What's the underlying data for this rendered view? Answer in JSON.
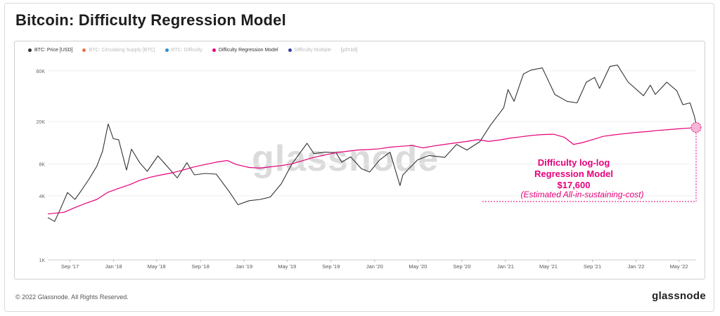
{
  "title": "Bitcoin: Difficulty Regression Model",
  "footer": {
    "copyright": "© 2022 Glassnode. All Rights Reserved.",
    "brand": "glassnode"
  },
  "watermark": "glassnode",
  "legend": {
    "items": [
      {
        "label": "BTC: Price [USD]",
        "color": "#333333",
        "active": true
      },
      {
        "label": "BTC: Circulating Supply [BTC]",
        "color": "#e8704a",
        "active": false
      },
      {
        "label": "BTC: Difficulty",
        "color": "#2b8fd6",
        "active": false
      },
      {
        "label": "Difficulty Regression Model",
        "color": "#e6007a",
        "active": true
      },
      {
        "label": "Difficulty Multiple",
        "color": "#3d3da8",
        "active": false
      }
    ],
    "scale_label": "[y2=10]"
  },
  "annotation": {
    "line1": "Difficulty log-log",
    "line2": "Regression Model",
    "line3": "$17,600",
    "line4": "(Estimated All-in-sustaining-cost)"
  },
  "chart_data": {
    "type": "line",
    "y_scale": "log",
    "y_ticks": [
      {
        "value": 1000,
        "label": "1K"
      },
      {
        "value": 4000,
        "label": "4K"
      },
      {
        "value": 8000,
        "label": "8K"
      },
      {
        "value": 20000,
        "label": "20K"
      },
      {
        "value": 60000,
        "label": "60K"
      }
    ],
    "x_ticks": [
      {
        "date": "2017-09-01",
        "label": "Sep '17"
      },
      {
        "date": "2018-01-01",
        "label": "Jan '18"
      },
      {
        "date": "2018-05-01",
        "label": "May '18"
      },
      {
        "date": "2018-09-01",
        "label": "Sep '18"
      },
      {
        "date": "2019-01-01",
        "label": "Jan '19"
      },
      {
        "date": "2019-05-01",
        "label": "May '19"
      },
      {
        "date": "2019-09-01",
        "label": "Sep '19"
      },
      {
        "date": "2020-01-01",
        "label": "Jan '20"
      },
      {
        "date": "2020-05-01",
        "label": "May '20"
      },
      {
        "date": "2020-09-01",
        "label": "Sep '20"
      },
      {
        "date": "2021-01-01",
        "label": "Jan '21"
      },
      {
        "date": "2021-05-01",
        "label": "May '21"
      },
      {
        "date": "2021-09-01",
        "label": "Sep '21"
      },
      {
        "date": "2022-01-01",
        "label": "Jan '22"
      },
      {
        "date": "2022-05-01",
        "label": "May '22"
      }
    ],
    "xlim": [
      "2017-07-01",
      "2022-06-18"
    ],
    "ylim": [
      1000,
      80000
    ],
    "series": [
      {
        "name": "BTC: Price [USD]",
        "color": "#333333",
        "points": [
          [
            "2017-07-01",
            2500
          ],
          [
            "2017-07-20",
            2300
          ],
          [
            "2017-08-05",
            3000
          ],
          [
            "2017-08-25",
            4300
          ],
          [
            "2017-09-15",
            3700
          ],
          [
            "2017-10-01",
            4400
          ],
          [
            "2017-10-25",
            5800
          ],
          [
            "2017-11-15",
            7600
          ],
          [
            "2017-12-01",
            10500
          ],
          [
            "2017-12-17",
            19000
          ],
          [
            "2017-12-31",
            13800
          ],
          [
            "2018-01-15",
            13500
          ],
          [
            "2018-02-06",
            7000
          ],
          [
            "2018-02-20",
            11000
          ],
          [
            "2018-03-15",
            8200
          ],
          [
            "2018-04-05",
            6800
          ],
          [
            "2018-05-05",
            9500
          ],
          [
            "2018-06-01",
            7500
          ],
          [
            "2018-06-28",
            5900
          ],
          [
            "2018-07-25",
            8200
          ],
          [
            "2018-08-15",
            6300
          ],
          [
            "2018-09-15",
            6500
          ],
          [
            "2018-10-15",
            6400
          ],
          [
            "2018-11-20",
            4400
          ],
          [
            "2018-12-15",
            3300
          ],
          [
            "2019-01-15",
            3600
          ],
          [
            "2019-02-15",
            3700
          ],
          [
            "2019-03-15",
            3900
          ],
          [
            "2019-04-15",
            5200
          ],
          [
            "2019-05-15",
            8000
          ],
          [
            "2019-06-26",
            12500
          ],
          [
            "2019-07-15",
            10000
          ],
          [
            "2019-08-15",
            10300
          ],
          [
            "2019-09-15",
            10200
          ],
          [
            "2019-10-01",
            8300
          ],
          [
            "2019-10-26",
            9300
          ],
          [
            "2019-11-25",
            7200
          ],
          [
            "2019-12-18",
            6700
          ],
          [
            "2020-01-15",
            8700
          ],
          [
            "2020-02-13",
            10300
          ],
          [
            "2020-03-12",
            5000
          ],
          [
            "2020-03-20",
            6300
          ],
          [
            "2020-04-30",
            8700
          ],
          [
            "2020-06-01",
            9600
          ],
          [
            "2020-07-15",
            9200
          ],
          [
            "2020-08-17",
            12200
          ],
          [
            "2020-09-15",
            10800
          ],
          [
            "2020-10-21",
            12900
          ],
          [
            "2020-11-20",
            18500
          ],
          [
            "2020-12-27",
            27000
          ],
          [
            "2021-01-08",
            40000
          ],
          [
            "2021-01-25",
            31000
          ],
          [
            "2021-02-20",
            56000
          ],
          [
            "2021-03-13",
            61000
          ],
          [
            "2021-04-14",
            64000
          ],
          [
            "2021-05-19",
            36000
          ],
          [
            "2021-06-22",
            31000
          ],
          [
            "2021-07-20",
            30000
          ],
          [
            "2021-08-15",
            47000
          ],
          [
            "2021-09-07",
            52000
          ],
          [
            "2021-09-21",
            41000
          ],
          [
            "2021-10-20",
            66000
          ],
          [
            "2021-11-10",
            68000
          ],
          [
            "2021-12-10",
            47000
          ],
          [
            "2022-01-22",
            35000
          ],
          [
            "2022-02-10",
            44000
          ],
          [
            "2022-02-24",
            36000
          ],
          [
            "2022-03-28",
            47000
          ],
          [
            "2022-04-25",
            39000
          ],
          [
            "2022-05-12",
            28800
          ],
          [
            "2022-06-01",
            30000
          ],
          [
            "2022-06-13",
            22500
          ],
          [
            "2022-06-18",
            19000
          ]
        ]
      },
      {
        "name": "Difficulty Regression Model",
        "color": "#e6007a",
        "points": [
          [
            "2017-07-01",
            2700
          ],
          [
            "2017-08-15",
            2800
          ],
          [
            "2017-09-15",
            3100
          ],
          [
            "2017-10-15",
            3400
          ],
          [
            "2017-11-15",
            3700
          ],
          [
            "2017-12-15",
            4300
          ],
          [
            "2018-01-15",
            4700
          ],
          [
            "2018-02-15",
            5100
          ],
          [
            "2018-03-15",
            5600
          ],
          [
            "2018-04-15",
            6000
          ],
          [
            "2018-05-15",
            6300
          ],
          [
            "2018-06-15",
            6600
          ],
          [
            "2018-07-15",
            7000
          ],
          [
            "2018-08-15",
            7500
          ],
          [
            "2018-09-15",
            7900
          ],
          [
            "2018-10-15",
            8300
          ],
          [
            "2018-11-15",
            8600
          ],
          [
            "2018-12-10",
            7900
          ],
          [
            "2019-01-15",
            7400
          ],
          [
            "2019-02-15",
            7300
          ],
          [
            "2019-03-15",
            7500
          ],
          [
            "2019-04-15",
            7700
          ],
          [
            "2019-05-15",
            8000
          ],
          [
            "2019-06-15",
            8600
          ],
          [
            "2019-07-15",
            9200
          ],
          [
            "2019-08-15",
            9700
          ],
          [
            "2019-09-15",
            10200
          ],
          [
            "2019-10-15",
            10500
          ],
          [
            "2019-11-15",
            10800
          ],
          [
            "2019-12-15",
            10900
          ],
          [
            "2020-01-15",
            11100
          ],
          [
            "2020-02-15",
            11500
          ],
          [
            "2020-03-15",
            11700
          ],
          [
            "2020-04-15",
            11900
          ],
          [
            "2020-05-15",
            11300
          ],
          [
            "2020-06-15",
            11800
          ],
          [
            "2020-07-15",
            12200
          ],
          [
            "2020-08-15",
            12600
          ],
          [
            "2020-09-15",
            13000
          ],
          [
            "2020-10-15",
            13500
          ],
          [
            "2020-11-15",
            13000
          ],
          [
            "2020-12-15",
            13400
          ],
          [
            "2021-01-15",
            14000
          ],
          [
            "2021-02-15",
            14400
          ],
          [
            "2021-03-15",
            14800
          ],
          [
            "2021-04-15",
            15100
          ],
          [
            "2021-05-15",
            15200
          ],
          [
            "2021-06-15",
            14200
          ],
          [
            "2021-07-10",
            12200
          ],
          [
            "2021-08-01",
            12600
          ],
          [
            "2021-09-01",
            13500
          ],
          [
            "2021-10-01",
            14500
          ],
          [
            "2021-11-01",
            15000
          ],
          [
            "2021-12-01",
            15400
          ],
          [
            "2022-01-01",
            15800
          ],
          [
            "2022-02-01",
            16100
          ],
          [
            "2022-03-01",
            16500
          ],
          [
            "2022-04-01",
            16800
          ],
          [
            "2022-05-01",
            17100
          ],
          [
            "2022-06-01",
            17400
          ],
          [
            "2022-06-18",
            17600
          ]
        ]
      }
    ],
    "marker": {
      "date": "2022-06-18",
      "value": 17600
    }
  }
}
